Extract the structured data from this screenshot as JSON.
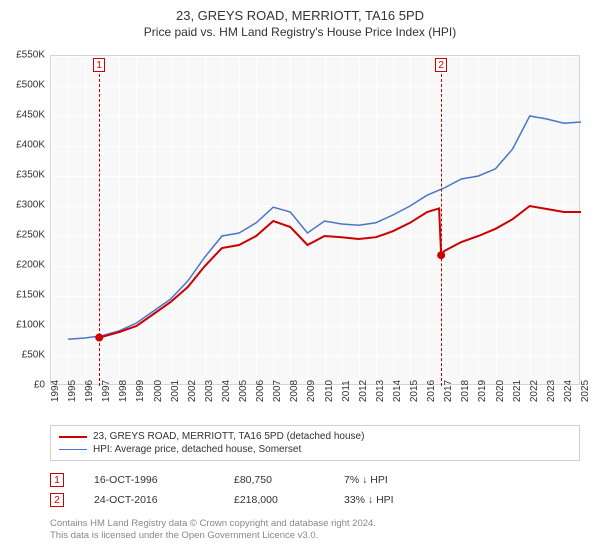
{
  "title": "23, GREYS ROAD, MERRIOTT, TA16 5PD",
  "subtitle": "Price paid vs. HM Land Registry's House Price Index (HPI)",
  "chart": {
    "type": "line",
    "background_color": "#f8f8f8",
    "grid_color": "#ffffff",
    "border_color": "#d5d5d5",
    "ylim": [
      0,
      550000
    ],
    "ytick_step": 50000,
    "ytick_prefix": "£",
    "ytick_suffix": "K",
    "ytick_divisor": 1000,
    "yticks": [
      0,
      50000,
      100000,
      150000,
      200000,
      250000,
      300000,
      350000,
      400000,
      450000,
      500000,
      550000
    ],
    "xlim": [
      1994,
      2025
    ],
    "xticks": [
      1994,
      1995,
      1996,
      1997,
      1998,
      1999,
      2000,
      2001,
      2002,
      2003,
      2004,
      2005,
      2006,
      2007,
      2008,
      2009,
      2010,
      2011,
      2012,
      2013,
      2014,
      2015,
      2016,
      2017,
      2018,
      2019,
      2020,
      2021,
      2022,
      2023,
      2024,
      2025
    ],
    "series1": {
      "label": "23, GREYS ROAD, MERRIOTT, TA16 5PD (detached house)",
      "color": "#cc0000",
      "line_width": 2,
      "data": [
        [
          1996.8,
          80750
        ],
        [
          1997,
          82000
        ],
        [
          1998,
          90000
        ],
        [
          1999,
          100000
        ],
        [
          2000,
          120000
        ],
        [
          2001,
          140000
        ],
        [
          2002,
          165000
        ],
        [
          2003,
          200000
        ],
        [
          2004,
          230000
        ],
        [
          2005,
          235000
        ],
        [
          2006,
          250000
        ],
        [
          2007,
          275000
        ],
        [
          2008,
          265000
        ],
        [
          2009,
          235000
        ],
        [
          2010,
          250000
        ],
        [
          2011,
          248000
        ],
        [
          2012,
          245000
        ],
        [
          2013,
          248000
        ],
        [
          2014,
          258000
        ],
        [
          2015,
          272000
        ],
        [
          2016,
          290000
        ],
        [
          2016.7,
          296000
        ],
        [
          2016.82,
          218000
        ],
        [
          2017,
          225000
        ],
        [
          2018,
          240000
        ],
        [
          2019,
          250000
        ],
        [
          2020,
          262000
        ],
        [
          2021,
          278000
        ],
        [
          2022,
          300000
        ],
        [
          2023,
          295000
        ],
        [
          2024,
          290000
        ],
        [
          2025,
          290000
        ]
      ]
    },
    "series2": {
      "label": "HPI: Average price, detached house, Somerset",
      "color": "#4a76c7",
      "line_width": 1.5,
      "data": [
        [
          1995,
          78000
        ],
        [
          1996,
          80000
        ],
        [
          1997,
          84000
        ],
        [
          1998,
          92000
        ],
        [
          1999,
          105000
        ],
        [
          2000,
          125000
        ],
        [
          2001,
          145000
        ],
        [
          2002,
          175000
        ],
        [
          2003,
          215000
        ],
        [
          2004,
          250000
        ],
        [
          2005,
          255000
        ],
        [
          2006,
          272000
        ],
        [
          2007,
          298000
        ],
        [
          2008,
          290000
        ],
        [
          2009,
          255000
        ],
        [
          2010,
          275000
        ],
        [
          2011,
          270000
        ],
        [
          2012,
          268000
        ],
        [
          2013,
          272000
        ],
        [
          2014,
          285000
        ],
        [
          2015,
          300000
        ],
        [
          2016,
          318000
        ],
        [
          2017,
          330000
        ],
        [
          2018,
          345000
        ],
        [
          2019,
          350000
        ],
        [
          2020,
          362000
        ],
        [
          2021,
          395000
        ],
        [
          2022,
          450000
        ],
        [
          2023,
          445000
        ],
        [
          2024,
          438000
        ],
        [
          2025,
          440000
        ]
      ]
    },
    "sale_markers": [
      {
        "num": "1",
        "x": 1996.82,
        "y": 80750
      },
      {
        "num": "2",
        "x": 2016.82,
        "y": 218000
      }
    ],
    "marker_color": "#cc0000",
    "marker_radius": 4
  },
  "legend": {
    "row1_label": "23, GREYS ROAD, MERRIOTT, TA16 5PD (detached house)",
    "row1_color": "#cc0000",
    "row2_label": "HPI: Average price, detached house, Somerset",
    "row2_color": "#4a76c7"
  },
  "sales": [
    {
      "num": "1",
      "date": "16-OCT-1996",
      "price": "£80,750",
      "pct": "7% ↓ HPI"
    },
    {
      "num": "2",
      "date": "24-OCT-2016",
      "price": "£218,000",
      "pct": "33% ↓ HPI"
    }
  ],
  "footer": {
    "line1": "Contains HM Land Registry data © Crown copyright and database right 2024.",
    "line2": "This data is licensed under the Open Government Licence v3.0."
  }
}
